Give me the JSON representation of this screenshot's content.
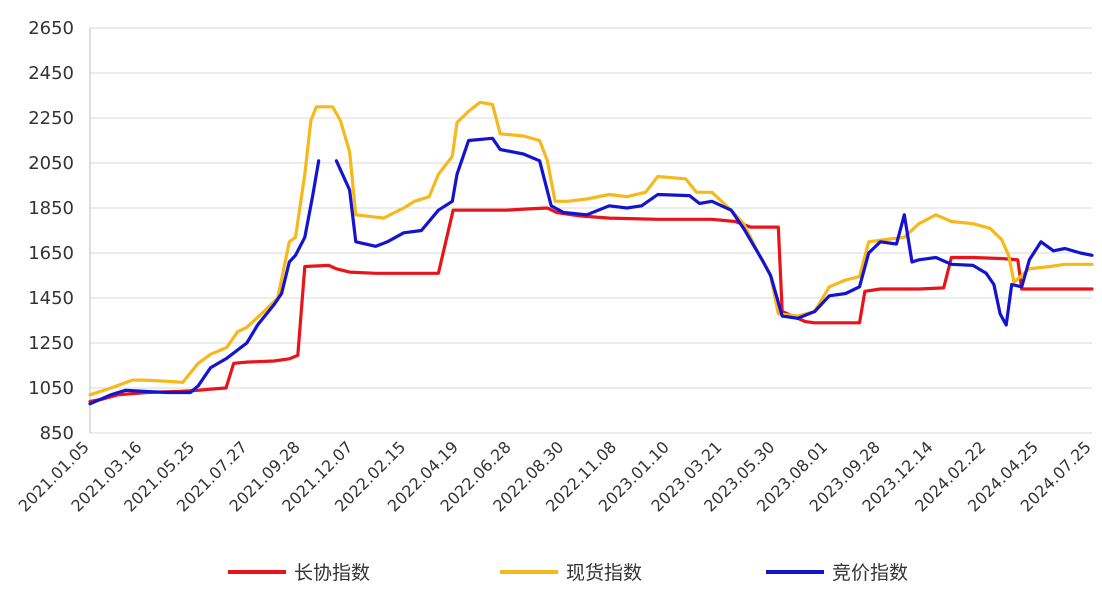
{
  "chart_data": {
    "type": "line",
    "title": "",
    "xlabel": "",
    "ylabel": "",
    "ylim": [
      850,
      2650
    ],
    "yticks": [
      850,
      1050,
      1250,
      1450,
      1650,
      1850,
      2050,
      2250,
      2450,
      2650
    ],
    "xrange": [
      "2021-01-05",
      "2024-07-25"
    ],
    "xticks": [
      "2021.01.05",
      "2021.03.16",
      "2021.05.25",
      "2021.07.27",
      "2021.09.28",
      "2021.12.07",
      "2022.02.15",
      "2022.04.19",
      "2022.06.28",
      "2022.08.30",
      "2022.11.08",
      "2023.01.10",
      "2023.03.21",
      "2023.05.30",
      "2023.08.01",
      "2023.09.28",
      "2023.12.14",
      "2024.02.22",
      "2024.04.25",
      "2024.07.25"
    ],
    "grid": "horizontal",
    "legend_position": "bottom",
    "series": [
      {
        "name": "长协指数",
        "color": "#e8141a",
        "points": [
          [
            "2021-01-05",
            990
          ],
          [
            "2021-01-20",
            1000
          ],
          [
            "2021-02-10",
            1020
          ],
          [
            "2021-03-20",
            1030
          ],
          [
            "2021-05-01",
            1035
          ],
          [
            "2021-05-25",
            1040
          ],
          [
            "2021-06-10",
            1045
          ],
          [
            "2021-06-30",
            1050
          ],
          [
            "2021-07-10",
            1160
          ],
          [
            "2021-07-27",
            1165
          ],
          [
            "2021-08-31",
            1170
          ],
          [
            "2021-09-20",
            1180
          ],
          [
            "2021-10-01",
            1195
          ],
          [
            "2021-10-10",
            1590
          ],
          [
            "2021-11-10",
            1595
          ],
          [
            "2021-11-20",
            1580
          ],
          [
            "2021-12-07",
            1565
          ],
          [
            "2022-01-10",
            1560
          ],
          [
            "2022-02-15",
            1560
          ],
          [
            "2022-03-20",
            1560
          ],
          [
            "2022-04-01",
            1560
          ],
          [
            "2022-04-20",
            1840
          ],
          [
            "2022-06-28",
            1840
          ],
          [
            "2022-07-20",
            1845
          ],
          [
            "2022-08-20",
            1850
          ],
          [
            "2022-09-01",
            1830
          ],
          [
            "2022-10-01",
            1815
          ],
          [
            "2022-11-08",
            1805
          ],
          [
            "2023-01-10",
            1800
          ],
          [
            "2023-03-21",
            1800
          ],
          [
            "2023-04-20",
            1790
          ],
          [
            "2023-05-10",
            1765
          ],
          [
            "2023-06-15",
            1765
          ],
          [
            "2023-06-20",
            1390
          ],
          [
            "2023-07-20",
            1345
          ],
          [
            "2023-08-01",
            1340
          ],
          [
            "2023-08-20",
            1340
          ],
          [
            "2023-09-28",
            1340
          ],
          [
            "2023-10-05",
            1480
          ],
          [
            "2023-10-25",
            1490
          ],
          [
            "2023-12-14",
            1490
          ],
          [
            "2024-01-15",
            1495
          ],
          [
            "2024-01-25",
            1630
          ],
          [
            "2024-02-22",
            1630
          ],
          [
            "2024-04-01",
            1625
          ],
          [
            "2024-04-20",
            1620
          ],
          [
            "2024-04-25",
            1490
          ],
          [
            "2024-07-25",
            1490
          ]
        ]
      },
      {
        "name": "现货指数",
        "color": "#f6b91b",
        "points": [
          [
            "2021-01-05",
            1020
          ],
          [
            "2021-02-01",
            1050
          ],
          [
            "2021-03-01",
            1085
          ],
          [
            "2021-03-16",
            1085
          ],
          [
            "2021-04-15",
            1080
          ],
          [
            "2021-05-05",
            1075
          ],
          [
            "2021-05-25",
            1160
          ],
          [
            "2021-06-10",
            1200
          ],
          [
            "2021-07-01",
            1230
          ],
          [
            "2021-07-15",
            1300
          ],
          [
            "2021-07-27",
            1320
          ],
          [
            "2021-08-15",
            1380
          ],
          [
            "2021-09-05",
            1450
          ],
          [
            "2021-09-20",
            1700
          ],
          [
            "2021-09-28",
            1720
          ],
          [
            "2021-10-10",
            2000
          ],
          [
            "2021-10-18",
            2240
          ],
          [
            "2021-10-25",
            2300
          ],
          [
            "2021-11-15",
            2300
          ],
          [
            "2021-11-25",
            2240
          ],
          [
            "2021-12-07",
            2100
          ],
          [
            "2021-12-15",
            1820
          ],
          [
            "2022-01-20",
            1805
          ],
          [
            "2022-02-15",
            1850
          ],
          [
            "2022-03-01",
            1880
          ],
          [
            "2022-03-20",
            1900
          ],
          [
            "2022-04-01",
            2000
          ],
          [
            "2022-04-19",
            2080
          ],
          [
            "2022-04-25",
            2230
          ],
          [
            "2022-05-10",
            2280
          ],
          [
            "2022-05-25",
            2320
          ],
          [
            "2022-06-10",
            2310
          ],
          [
            "2022-06-20",
            2180
          ],
          [
            "2022-07-20",
            2170
          ],
          [
            "2022-08-10",
            2150
          ],
          [
            "2022-08-20",
            2060
          ],
          [
            "2022-08-30",
            1880
          ],
          [
            "2022-09-15",
            1880
          ],
          [
            "2022-10-10",
            1890
          ],
          [
            "2022-11-08",
            1910
          ],
          [
            "2022-12-01",
            1900
          ],
          [
            "2022-12-25",
            1920
          ],
          [
            "2023-01-10",
            1990
          ],
          [
            "2023-02-15",
            1980
          ],
          [
            "2023-03-01",
            1920
          ],
          [
            "2023-03-21",
            1920
          ],
          [
            "2023-04-15",
            1840
          ],
          [
            "2023-05-01",
            1780
          ],
          [
            "2023-05-20",
            1650
          ],
          [
            "2023-06-05",
            1550
          ],
          [
            "2023-06-15",
            1380
          ],
          [
            "2023-07-10",
            1370
          ],
          [
            "2023-08-01",
            1390
          ],
          [
            "2023-08-20",
            1500
          ],
          [
            "2023-09-10",
            1530
          ],
          [
            "2023-09-28",
            1545
          ],
          [
            "2023-10-10",
            1700
          ],
          [
            "2023-11-01",
            1710
          ],
          [
            "2023-11-25",
            1720
          ],
          [
            "2023-12-14",
            1780
          ],
          [
            "2024-01-05",
            1820
          ],
          [
            "2024-01-25",
            1790
          ],
          [
            "2024-02-22",
            1780
          ],
          [
            "2024-03-15",
            1760
          ],
          [
            "2024-03-30",
            1710
          ],
          [
            "2024-04-08",
            1640
          ],
          [
            "2024-04-15",
            1520
          ],
          [
            "2024-05-05",
            1580
          ],
          [
            "2024-06-01",
            1590
          ],
          [
            "2024-06-20",
            1600
          ],
          [
            "2024-07-25",
            1600
          ]
        ]
      },
      {
        "name": "竞价指数",
        "color": "#1414d0",
        "segments": [
          [
            [
              "2021-01-05",
              980
            ],
            [
              "2021-02-01",
              1020
            ],
            [
              "2021-02-20",
              1040
            ],
            [
              "2021-03-16",
              1035
            ],
            [
              "2021-04-15",
              1030
            ],
            [
              "2021-05-15",
              1030
            ],
            [
              "2021-05-25",
              1060
            ],
            [
              "2021-06-10",
              1140
            ],
            [
              "2021-06-30",
              1180
            ],
            [
              "2021-07-27",
              1250
            ],
            [
              "2021-08-10",
              1330
            ],
            [
              "2021-08-31",
              1420
            ],
            [
              "2021-09-10",
              1470
            ],
            [
              "2021-09-20",
              1610
            ],
            [
              "2021-09-28",
              1640
            ],
            [
              "2021-10-10",
              1720
            ],
            [
              "2021-10-20",
              1900
            ],
            [
              "2021-10-28",
              2060
            ]
          ],
          [
            [
              "2021-11-20",
              2060
            ],
            [
              "2021-12-07",
              1930
            ],
            [
              "2021-12-15",
              1700
            ],
            [
              "2022-01-10",
              1680
            ],
            [
              "2022-01-25",
              1700
            ],
            [
              "2022-02-15",
              1740
            ],
            [
              "2022-03-10",
              1750
            ],
            [
              "2022-04-01",
              1840
            ],
            [
              "2022-04-19",
              1880
            ],
            [
              "2022-04-25",
              2000
            ],
            [
              "2022-05-10",
              2150
            ],
            [
              "2022-06-10",
              2160
            ],
            [
              "2022-06-20",
              2110
            ],
            [
              "2022-07-20",
              2090
            ],
            [
              "2022-08-10",
              2060
            ],
            [
              "2022-08-25",
              1860
            ],
            [
              "2022-09-10",
              1830
            ],
            [
              "2022-10-10",
              1820
            ],
            [
              "2022-11-08",
              1860
            ],
            [
              "2022-12-01",
              1850
            ],
            [
              "2022-12-20",
              1860
            ],
            [
              "2023-01-10",
              1910
            ],
            [
              "2023-02-20",
              1905
            ],
            [
              "2023-03-05",
              1870
            ],
            [
              "2023-03-21",
              1880
            ],
            [
              "2023-04-15",
              1840
            ],
            [
              "2023-05-01",
              1760
            ],
            [
              "2023-05-25",
              1620
            ],
            [
              "2023-06-05",
              1550
            ],
            [
              "2023-06-20",
              1370
            ],
            [
              "2023-07-10",
              1360
            ],
            [
              "2023-08-01",
              1390
            ],
            [
              "2023-08-20",
              1460
            ],
            [
              "2023-09-10",
              1470
            ],
            [
              "2023-09-28",
              1500
            ],
            [
              "2023-10-10",
              1650
            ],
            [
              "2023-10-25",
              1700
            ],
            [
              "2023-11-15",
              1690
            ],
            [
              "2023-11-25",
              1820
            ],
            [
              "2023-12-05",
              1610
            ],
            [
              "2023-12-14",
              1620
            ],
            [
              "2024-01-05",
              1630
            ],
            [
              "2024-01-25",
              1600
            ],
            [
              "2024-02-22",
              1595
            ],
            [
              "2024-03-10",
              1560
            ],
            [
              "2024-03-20",
              1510
            ],
            [
              "2024-03-28",
              1380
            ],
            [
              "2024-04-05",
              1330
            ],
            [
              "2024-04-12",
              1510
            ],
            [
              "2024-04-25",
              1500
            ],
            [
              "2024-05-05",
              1620
            ],
            [
              "2024-05-20",
              1700
            ],
            [
              "2024-06-05",
              1660
            ],
            [
              "2024-06-20",
              1670
            ],
            [
              "2024-07-10",
              1650
            ],
            [
              "2024-07-25",
              1640
            ]
          ]
        ]
      }
    ]
  }
}
